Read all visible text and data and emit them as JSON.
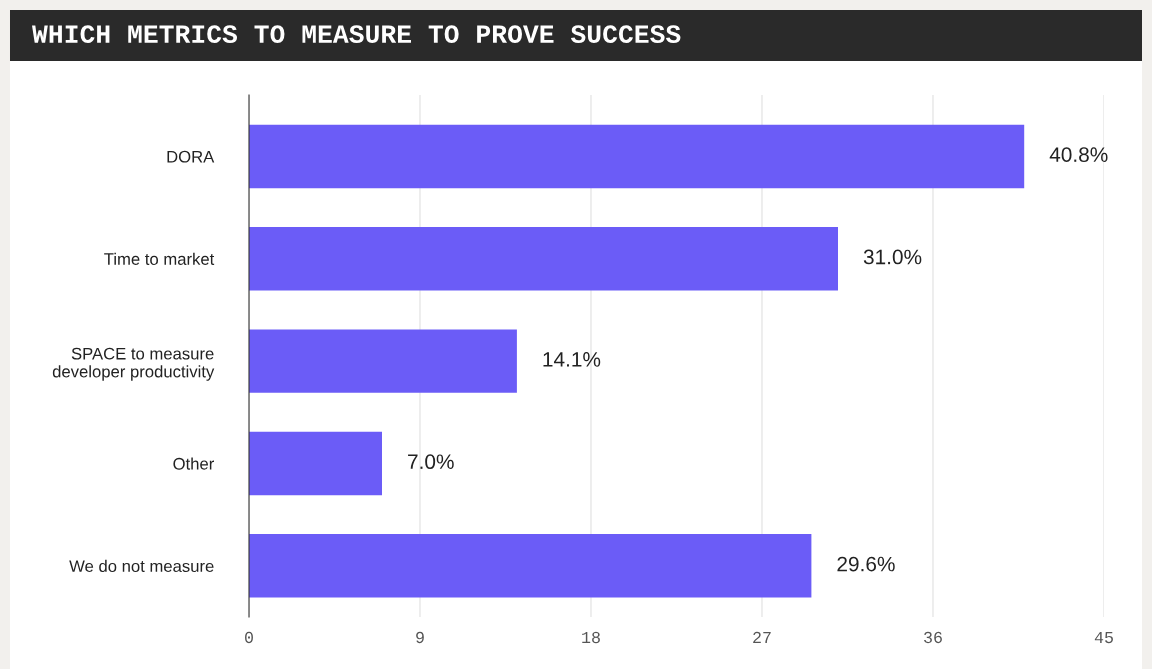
{
  "chart_data": {
    "type": "bar",
    "orientation": "horizontal",
    "title": "WHICH METRICS TO MEASURE TO PROVE SUCCESS",
    "categories": [
      "DORA",
      "Time to market",
      "SPACE to measure\ndeveloper productivity",
      "Other",
      "We do not measure"
    ],
    "values": [
      40.8,
      31.0,
      14.1,
      7.0,
      29.6
    ],
    "value_labels": [
      "40.8%",
      "31.0%",
      "14.1%",
      "7.0%",
      "29.6%"
    ],
    "color": "#6b5cf7",
    "xlim": [
      0,
      45
    ],
    "xticks": [
      0,
      9,
      18,
      27,
      36,
      45
    ],
    "grid": "x"
  }
}
